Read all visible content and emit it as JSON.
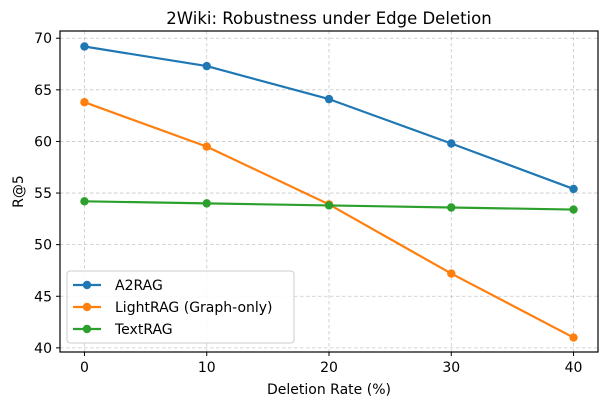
{
  "chart_data": {
    "type": "line",
    "title": "2Wiki: Robustness under Edge Deletion",
    "xlabel": "Deletion Rate (%)",
    "ylabel": "R@5",
    "x": [
      0,
      10,
      20,
      30,
      40
    ],
    "xticks": [
      "0",
      "10",
      "20",
      "30",
      "40"
    ],
    "yticks": [
      "40",
      "45",
      "50",
      "55",
      "60",
      "65",
      "70"
    ],
    "xlim": [
      -2,
      42
    ],
    "ylim": [
      39.6,
      70.7
    ],
    "grid": true,
    "legend_position": "lower-left",
    "series": [
      {
        "name": "A2RAG",
        "color": "#1f77b4",
        "values": [
          69.2,
          67.3,
          64.1,
          59.8,
          55.4
        ]
      },
      {
        "name": "LightRAG (Graph-only)",
        "color": "#ff7f0e",
        "values": [
          63.8,
          59.5,
          53.9,
          47.2,
          41.0
        ]
      },
      {
        "name": "TextRAG",
        "color": "#2ca02c",
        "values": [
          54.2,
          54.0,
          53.8,
          53.6,
          53.4
        ]
      }
    ]
  }
}
